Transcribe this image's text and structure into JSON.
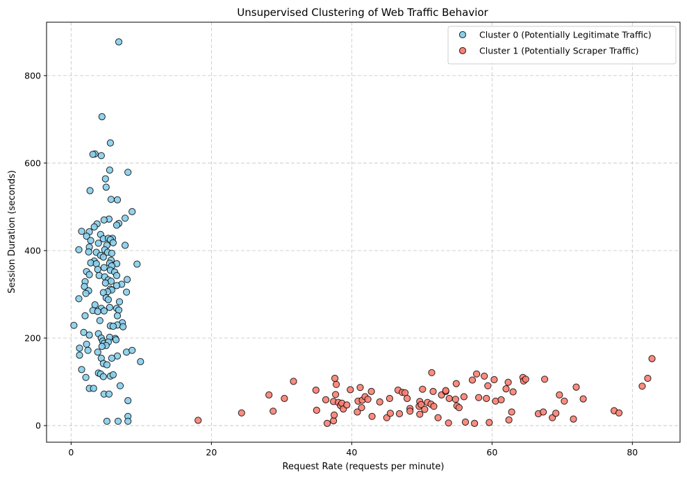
{
  "chart_data": {
    "type": "scatter",
    "title": "Unsupervised Clustering of Web Traffic Behavior",
    "xlabel": "Request Rate (requests per minute)",
    "ylabel": "Session Duration (seconds)",
    "xlim": [
      -3.5,
      86.8
    ],
    "ylim": [
      -38,
      922
    ],
    "xticks": [
      0,
      20,
      40,
      60,
      80
    ],
    "yticks": [
      0,
      200,
      400,
      600,
      800
    ],
    "grid": true,
    "legend_position": "top-right",
    "series": [
      {
        "name": "Cluster 0 (Potentially Legitimate Traffic)",
        "color": "#87ceeb",
        "points": [
          [
            6.8,
            877
          ],
          [
            4.4,
            706
          ],
          [
            5.6,
            646
          ],
          [
            3.4,
            621
          ],
          [
            3.1,
            620
          ],
          [
            4.3,
            617
          ],
          [
            5.5,
            584
          ],
          [
            8.1,
            579
          ],
          [
            4.9,
            564
          ],
          [
            2.7,
            537
          ],
          [
            5.0,
            545
          ],
          [
            5.7,
            517
          ],
          [
            6.6,
            516
          ],
          [
            8.7,
            489
          ],
          [
            7.7,
            474
          ],
          [
            5.4,
            472
          ],
          [
            4.7,
            470
          ],
          [
            3.7,
            461
          ],
          [
            6.8,
            462
          ],
          [
            6.5,
            458
          ],
          [
            3.3,
            454
          ],
          [
            1.5,
            444
          ],
          [
            2.6,
            443
          ],
          [
            4.2,
            437
          ],
          [
            2.2,
            433
          ],
          [
            5.9,
            428
          ],
          [
            4.6,
            427
          ],
          [
            5.3,
            428
          ],
          [
            5.6,
            425
          ],
          [
            2.8,
            423
          ],
          [
            3.9,
            417
          ],
          [
            6.0,
            418
          ],
          [
            5.1,
            412
          ],
          [
            7.7,
            412
          ],
          [
            2.6,
            408
          ],
          [
            1.1,
            402
          ],
          [
            4.8,
            402
          ],
          [
            3.6,
            396
          ],
          [
            5.2,
            396
          ],
          [
            5.8,
            394
          ],
          [
            4.2,
            389
          ],
          [
            2.5,
            397
          ],
          [
            4.6,
            385
          ],
          [
            3.3,
            376
          ],
          [
            5.7,
            378
          ],
          [
            2.8,
            372
          ],
          [
            3.6,
            370
          ],
          [
            5.5,
            371
          ],
          [
            6.5,
            370
          ],
          [
            9.4,
            369
          ],
          [
            4.7,
            361
          ],
          [
            5.8,
            365
          ],
          [
            2.2,
            352
          ],
          [
            5.6,
            355
          ],
          [
            3.8,
            357
          ],
          [
            6.2,
            351
          ],
          [
            2.6,
            345
          ],
          [
            4.0,
            343
          ],
          [
            6.5,
            343
          ],
          [
            4.8,
            340
          ],
          [
            5.3,
            333
          ],
          [
            5.7,
            330
          ],
          [
            8.0,
            334
          ],
          [
            2.0,
            329
          ],
          [
            4.9,
            326
          ],
          [
            7.2,
            323
          ],
          [
            1.9,
            318
          ],
          [
            6.5,
            320
          ],
          [
            5.6,
            312
          ],
          [
            2.5,
            308
          ],
          [
            5.8,
            310
          ],
          [
            5.2,
            306
          ],
          [
            7.9,
            305
          ],
          [
            2.1,
            302
          ],
          [
            4.6,
            304
          ],
          [
            1.1,
            290
          ],
          [
            5.0,
            292
          ],
          [
            5.3,
            288
          ],
          [
            6.9,
            283
          ],
          [
            3.4,
            276
          ],
          [
            5.5,
            270
          ],
          [
            4.3,
            268
          ],
          [
            6.5,
            268
          ],
          [
            6.8,
            264
          ],
          [
            3.1,
            263
          ],
          [
            3.8,
            261
          ],
          [
            4.7,
            262
          ],
          [
            2.0,
            251
          ],
          [
            6.6,
            251
          ],
          [
            4.1,
            240
          ],
          [
            7.3,
            235
          ],
          [
            6.6,
            230
          ],
          [
            0.4,
            229
          ],
          [
            5.6,
            228
          ],
          [
            6.0,
            227
          ],
          [
            7.4,
            226
          ],
          [
            1.8,
            213
          ],
          [
            3.9,
            210
          ],
          [
            2.6,
            207
          ],
          [
            4.3,
            200
          ],
          [
            5.5,
            202
          ],
          [
            6.3,
            199
          ],
          [
            6.4,
            196
          ],
          [
            4.5,
            193
          ],
          [
            4.7,
            188
          ],
          [
            5.3,
            191
          ],
          [
            2.2,
            186
          ],
          [
            5.0,
            183
          ],
          [
            1.2,
            177
          ],
          [
            4.4,
            181
          ],
          [
            2.4,
            172
          ],
          [
            3.8,
            168
          ],
          [
            7.9,
            168
          ],
          [
            8.7,
            172
          ],
          [
            1.2,
            161
          ],
          [
            6.6,
            159
          ],
          [
            5.8,
            154
          ],
          [
            4.3,
            154
          ],
          [
            4.6,
            142
          ],
          [
            5.1,
            139
          ],
          [
            9.9,
            146
          ],
          [
            1.5,
            128
          ],
          [
            3.9,
            120
          ],
          [
            4.2,
            118
          ],
          [
            4.6,
            112
          ],
          [
            5.6,
            113
          ],
          [
            6.0,
            116
          ],
          [
            2.1,
            110
          ],
          [
            7.0,
            91
          ],
          [
            2.6,
            85
          ],
          [
            3.2,
            85
          ],
          [
            4.7,
            72
          ],
          [
            5.4,
            72
          ],
          [
            8.1,
            57
          ],
          [
            8.1,
            21
          ],
          [
            5.1,
            10
          ],
          [
            6.7,
            10
          ],
          [
            8.1,
            10
          ]
        ]
      },
      {
        "name": "Cluster 1 (Potentially Scraper Traffic)",
        "color": "#fa8072",
        "points": [
          [
            18.1,
            12
          ],
          [
            24.3,
            29
          ],
          [
            28.2,
            70
          ],
          [
            28.8,
            33
          ],
          [
            30.4,
            62
          ],
          [
            31.7,
            101
          ],
          [
            34.9,
            81
          ],
          [
            35.0,
            35
          ],
          [
            36.3,
            59
          ],
          [
            36.5,
            5
          ],
          [
            37.4,
            55
          ],
          [
            37.4,
            11
          ],
          [
            37.5,
            24
          ],
          [
            37.6,
            108
          ],
          [
            37.7,
            71
          ],
          [
            37.8,
            94
          ],
          [
            38.1,
            53
          ],
          [
            38.4,
            46
          ],
          [
            38.6,
            51
          ],
          [
            38.8,
            38
          ],
          [
            39.3,
            47
          ],
          [
            39.8,
            82
          ],
          [
            40.8,
            31
          ],
          [
            40.9,
            56
          ],
          [
            41.2,
            87
          ],
          [
            41.5,
            58
          ],
          [
            41.4,
            41
          ],
          [
            41.9,
            66
          ],
          [
            42.3,
            60
          ],
          [
            42.8,
            78
          ],
          [
            42.9,
            21
          ],
          [
            44.0,
            54
          ],
          [
            45.0,
            18
          ],
          [
            45.4,
            62
          ],
          [
            45.5,
            28
          ],
          [
            46.6,
            81
          ],
          [
            46.8,
            27
          ],
          [
            47.2,
            76
          ],
          [
            47.6,
            75
          ],
          [
            47.9,
            62
          ],
          [
            48.3,
            39
          ],
          [
            48.3,
            33
          ],
          [
            49.6,
            44
          ],
          [
            49.7,
            55
          ],
          [
            49.7,
            26
          ],
          [
            49.9,
            48
          ],
          [
            50.1,
            83
          ],
          [
            50.4,
            37
          ],
          [
            50.8,
            53
          ],
          [
            51.3,
            49
          ],
          [
            51.4,
            121
          ],
          [
            51.6,
            78
          ],
          [
            51.7,
            44
          ],
          [
            52.3,
            18
          ],
          [
            52.8,
            70
          ],
          [
            53.4,
            78
          ],
          [
            53.4,
            80
          ],
          [
            53.8,
            6
          ],
          [
            53.9,
            62
          ],
          [
            54.8,
            60
          ],
          [
            54.9,
            96
          ],
          [
            55.0,
            45
          ],
          [
            55.3,
            41
          ],
          [
            56.0,
            66
          ],
          [
            56.2,
            8
          ],
          [
            57.2,
            104
          ],
          [
            57.5,
            5
          ],
          [
            57.8,
            118
          ],
          [
            58.1,
            64
          ],
          [
            58.9,
            113
          ],
          [
            59.2,
            62
          ],
          [
            59.4,
            91
          ],
          [
            59.6,
            7
          ],
          [
            60.3,
            105
          ],
          [
            60.5,
            56
          ],
          [
            61.3,
            59
          ],
          [
            62.0,
            84
          ],
          [
            62.3,
            99
          ],
          [
            62.4,
            13
          ],
          [
            62.8,
            31
          ],
          [
            63.0,
            77
          ],
          [
            64.4,
            110
          ],
          [
            64.5,
            102
          ],
          [
            64.8,
            106
          ],
          [
            66.6,
            27
          ],
          [
            67.3,
            31
          ],
          [
            67.5,
            106
          ],
          [
            68.6,
            18
          ],
          [
            69.1,
            28
          ],
          [
            69.6,
            70
          ],
          [
            70.3,
            56
          ],
          [
            71.6,
            15
          ],
          [
            72.0,
            88
          ],
          [
            73.0,
            61
          ],
          [
            77.4,
            34
          ],
          [
            78.1,
            29
          ],
          [
            81.4,
            90
          ],
          [
            82.2,
            108
          ],
          [
            82.8,
            153
          ]
        ]
      }
    ]
  }
}
